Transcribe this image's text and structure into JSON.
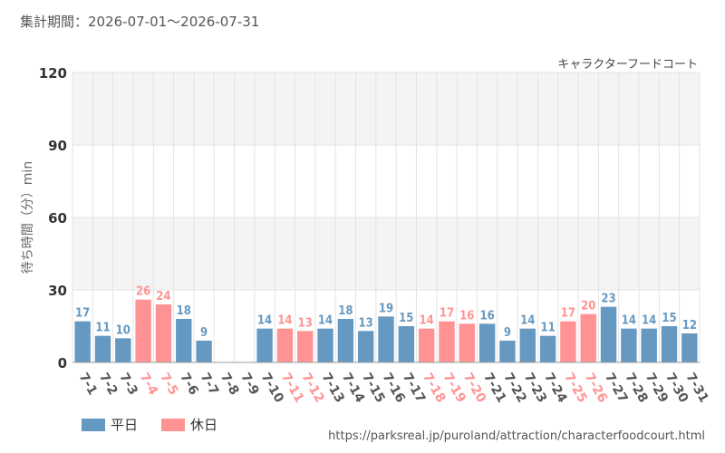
{
  "header": {
    "period": "集計期間：2026-07-01～2026-07-31",
    "attraction": "キャラクターフードコート"
  },
  "footer": {
    "source_url": "https://parksreal.jp/puroland/attraction/characterfoodcourt.html"
  },
  "legend": [
    {
      "label": "平日",
      "color": "#6699c2"
    },
    {
      "label": "休日",
      "color": "#ff9393"
    }
  ],
  "chart_data": {
    "type": "bar",
    "xlabel": "",
    "ylabel": "待ち時間（分）min",
    "ylim": [
      0,
      120
    ],
    "yticks": [
      0,
      30,
      60,
      90,
      120
    ],
    "grid": true,
    "legend_position": "bottom-left",
    "categories": [
      "7-1",
      "7-2",
      "7-3",
      "7-4",
      "7-5",
      "7-6",
      "7-7",
      "7-8",
      "7-9",
      "7-10",
      "7-11",
      "7-12",
      "7-13",
      "7-14",
      "7-15",
      "7-16",
      "7-17",
      "7-18",
      "7-19",
      "7-20",
      "7-21",
      "7-22",
      "7-23",
      "7-24",
      "7-25",
      "7-26",
      "7-27",
      "7-28",
      "7-29",
      "7-30",
      "7-31"
    ],
    "values": [
      17,
      11,
      10,
      26,
      24,
      18,
      9,
      null,
      null,
      14,
      14,
      13,
      14,
      18,
      13,
      19,
      15,
      14,
      17,
      16,
      16,
      9,
      14,
      11,
      17,
      20,
      23,
      14,
      14,
      15,
      12
    ],
    "day_type": [
      "平日",
      "平日",
      "平日",
      "休日",
      "休日",
      "平日",
      "平日",
      "平日",
      "平日",
      "平日",
      "休日",
      "休日",
      "平日",
      "平日",
      "平日",
      "平日",
      "平日",
      "休日",
      "休日",
      "休日",
      "平日",
      "平日",
      "平日",
      "平日",
      "休日",
      "休日",
      "平日",
      "平日",
      "平日",
      "平日",
      "平日"
    ],
    "colors": {
      "weekday": "#6699c2",
      "holiday": "#ff9393",
      "axis_text": "#555555",
      "grid": "#e3e3e3",
      "band": "#f4f4f4"
    }
  }
}
